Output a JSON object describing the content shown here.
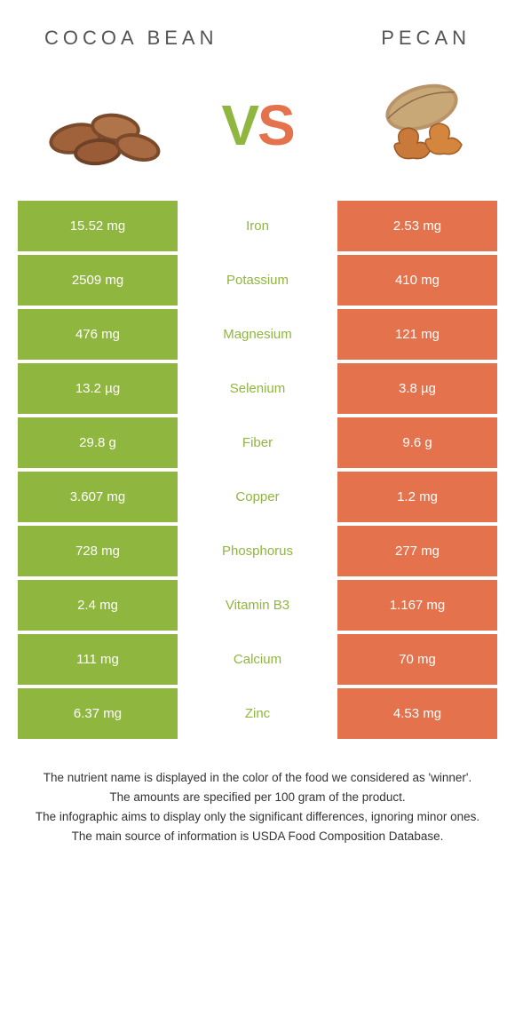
{
  "left_title": "COCOA BEAN",
  "right_title": "PECAN",
  "colors": {
    "left": "#8fb63f",
    "right": "#e4724d",
    "bg": "#ffffff"
  },
  "rows": [
    {
      "left": "15.52 mg",
      "label": "Iron",
      "right": "2.53 mg",
      "winner": "left"
    },
    {
      "left": "2509 mg",
      "label": "Potassium",
      "right": "410 mg",
      "winner": "left"
    },
    {
      "left": "476 mg",
      "label": "Magnesium",
      "right": "121 mg",
      "winner": "left"
    },
    {
      "left": "13.2 µg",
      "label": "Selenium",
      "right": "3.8 µg",
      "winner": "left"
    },
    {
      "left": "29.8 g",
      "label": "Fiber",
      "right": "9.6 g",
      "winner": "left"
    },
    {
      "left": "3.607 mg",
      "label": "Copper",
      "right": "1.2 mg",
      "winner": "left"
    },
    {
      "left": "728 mg",
      "label": "Phosphorus",
      "right": "277 mg",
      "winner": "left"
    },
    {
      "left": "2.4 mg",
      "label": "Vitamin B3",
      "right": "1.167 mg",
      "winner": "left"
    },
    {
      "left": "111 mg",
      "label": "Calcium",
      "right": "70 mg",
      "winner": "left"
    },
    {
      "left": "6.37 mg",
      "label": "Zinc",
      "right": "4.53 mg",
      "winner": "left"
    }
  ],
  "footer": [
    "The nutrient name is displayed in the color of the food we considered as 'winner'.",
    "The amounts are specified per 100 gram of the product.",
    "The infographic aims to display only the significant differences, ignoring minor ones.",
    "The main source of information is USDA Food Composition Database."
  ]
}
